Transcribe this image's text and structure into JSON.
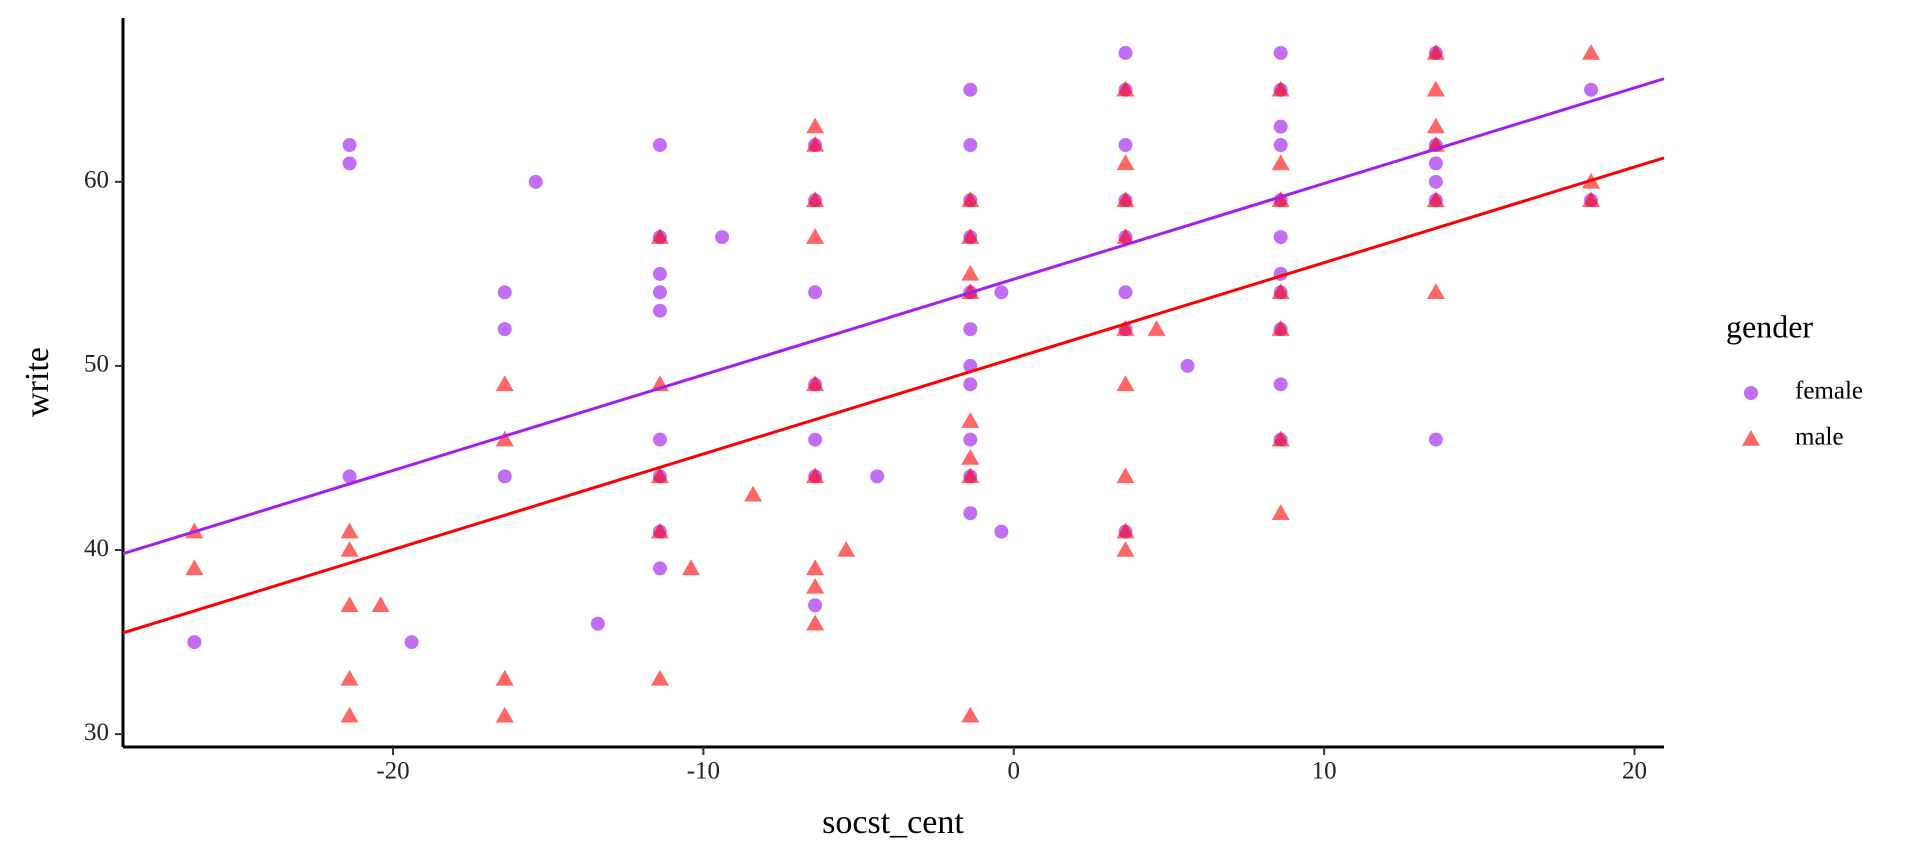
{
  "chart_data": {
    "type": "scatter",
    "x_label": "socst_cent",
    "y_label": "write",
    "legend_title": "gender",
    "legend_position": "right",
    "xlim": [
      -28.7,
      20.95
    ],
    "ylim": [
      29.3,
      68.9
    ],
    "xticks": [
      -20,
      -10,
      0,
      10,
      20
    ],
    "yticks": [
      30,
      40,
      50,
      60
    ],
    "grid": false,
    "series": [
      {
        "name": "female",
        "color": "#a020f0",
        "marker": "circle",
        "x": [
          -26.4,
          -21.4,
          -21.4,
          -21.4,
          -15.4,
          -16.4,
          -16.4,
          -16.4,
          -19.4,
          -13.4,
          -11.4,
          -11.4,
          -11.4,
          -11.4,
          -11.4,
          -11.4,
          -11.4,
          -11.4,
          -11.4,
          -9.4,
          -6.4,
          -6.4,
          -6.4,
          -6.4,
          -6.4,
          -6.4,
          -6.4,
          -4.4,
          -1.4,
          -1.4,
          -1.4,
          -1.4,
          -1.4,
          -1.4,
          -1.4,
          -1.4,
          -1.4,
          -1.4,
          -1.4,
          -0.4,
          -0.4,
          3.6,
          3.6,
          3.6,
          3.6,
          3.6,
          3.6,
          3.6,
          3.6,
          5.6,
          8.6,
          8.6,
          8.6,
          8.6,
          8.6,
          8.6,
          8.6,
          8.6,
          8.6,
          8.6,
          8.6,
          13.6,
          13.6,
          13.6,
          13.6,
          13.6,
          13.6,
          18.6,
          18.6
        ],
        "values": [
          35,
          62,
          61,
          44,
          60,
          54,
          52,
          44,
          35,
          36,
          62,
          57,
          55,
          54,
          53,
          46,
          44,
          41,
          39,
          57,
          62,
          59,
          54,
          49,
          46,
          44,
          37,
          44,
          65,
          62,
          59,
          57,
          54,
          52,
          50,
          49,
          46,
          44,
          42,
          54,
          41,
          67,
          65,
          62,
          59,
          57,
          54,
          52,
          41,
          50,
          67,
          65,
          63,
          62,
          59,
          57,
          55,
          54,
          52,
          49,
          46,
          67,
          62,
          61,
          60,
          59,
          46,
          65,
          59
        ],
        "fit": {
          "x": [
            -28.7,
            20.95
          ],
          "y": [
            39.8,
            65.6
          ]
        }
      },
      {
        "name": "male",
        "color": "#ff0000",
        "marker": "triangle",
        "x": [
          -26.4,
          -26.4,
          -21.4,
          -21.4,
          -21.4,
          -21.4,
          -21.4,
          -20.4,
          -16.4,
          -16.4,
          -16.4,
          -16.4,
          -11.4,
          -11.4,
          -11.4,
          -11.4,
          -11.4,
          -10.4,
          -8.4,
          -6.4,
          -6.4,
          -6.4,
          -6.4,
          -6.4,
          -6.4,
          -6.4,
          -6.4,
          -6.4,
          -5.4,
          -1.4,
          -1.4,
          -1.4,
          -1.4,
          -1.4,
          -1.4,
          -1.4,
          -1.4,
          3.6,
          3.6,
          3.6,
          3.6,
          3.6,
          3.6,
          3.6,
          3.6,
          3.6,
          4.6,
          8.6,
          8.6,
          8.6,
          8.6,
          8.6,
          8.6,
          8.6,
          13.6,
          13.6,
          13.6,
          13.6,
          13.6,
          13.6,
          18.6,
          18.6,
          18.6
        ],
        "values": [
          41,
          39,
          41,
          40,
          37,
          33,
          31,
          37,
          49,
          46,
          33,
          31,
          57,
          49,
          44,
          41,
          33,
          39,
          43,
          63,
          62,
          59,
          57,
          49,
          44,
          39,
          38,
          36,
          40,
          59,
          57,
          55,
          54,
          47,
          45,
          44,
          31,
          65,
          61,
          59,
          57,
          52,
          49,
          44,
          41,
          40,
          52,
          65,
          61,
          59,
          54,
          52,
          46,
          42,
          67,
          65,
          63,
          62,
          59,
          54,
          67,
          60,
          59
        ],
        "fit": {
          "x": [
            -28.7,
            20.95
          ],
          "y": [
            35.5,
            61.3
          ]
        }
      }
    ]
  }
}
